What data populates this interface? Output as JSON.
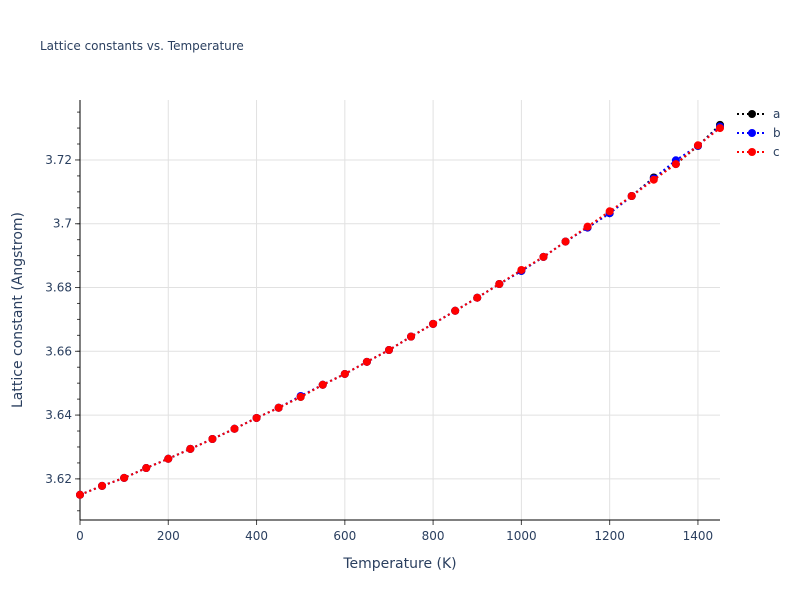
{
  "chart_data": {
    "type": "line",
    "title": "Lattice constants vs. Temperature",
    "xlabel": "Temperature (K)",
    "ylabel": "Lattice constant (Angstrom)",
    "xlim": [
      0,
      1450
    ],
    "ylim": [
      3.6071,
      3.7388
    ],
    "xticks": [
      0,
      200,
      400,
      600,
      800,
      1000,
      1200,
      1400
    ],
    "yticks": [
      3.62,
      3.64,
      3.66,
      3.68,
      3.7,
      3.72
    ],
    "ytick_labels": [
      "3.62",
      "3.64",
      "3.66",
      "3.68",
      "3.7",
      "3.72"
    ],
    "grid": true,
    "legend": "top-right outside",
    "x": [
      0,
      50,
      100,
      150,
      200,
      250,
      300,
      350,
      400,
      450,
      500,
      550,
      600,
      650,
      700,
      750,
      800,
      850,
      900,
      950,
      1000,
      1050,
      1100,
      1150,
      1200,
      1250,
      1300,
      1350,
      1400,
      1450
    ],
    "series": [
      {
        "name": "a",
        "color": "#000000",
        "values": [
          3.615,
          3.6178,
          3.6203,
          3.6234,
          3.6263,
          3.6294,
          3.6325,
          3.6357,
          3.6391,
          3.6423,
          3.6457,
          3.6495,
          3.6529,
          3.6567,
          3.6604,
          3.6646,
          3.6686,
          3.6727,
          3.6768,
          3.6811,
          3.6852,
          3.6896,
          3.6944,
          3.6988,
          3.7033,
          3.7087,
          3.7145,
          3.7187,
          3.7244,
          3.731
        ]
      },
      {
        "name": "b",
        "color": "#0000ff",
        "values": [
          3.615,
          3.6178,
          3.6203,
          3.6234,
          3.6263,
          3.6294,
          3.6325,
          3.6357,
          3.6391,
          3.6423,
          3.646,
          3.6495,
          3.6529,
          3.6567,
          3.6604,
          3.6646,
          3.6686,
          3.6727,
          3.6768,
          3.6811,
          3.6852,
          3.6896,
          3.6944,
          3.6988,
          3.7033,
          3.7087,
          3.7142,
          3.7199,
          3.7244,
          3.7305
        ]
      },
      {
        "name": "c",
        "color": "#ff0000",
        "values": [
          3.615,
          3.6178,
          3.6203,
          3.6234,
          3.6263,
          3.6294,
          3.6325,
          3.6357,
          3.6391,
          3.6423,
          3.6457,
          3.6495,
          3.6529,
          3.6567,
          3.6604,
          3.6646,
          3.6686,
          3.6727,
          3.6768,
          3.6811,
          3.6855,
          3.6896,
          3.6944,
          3.6991,
          3.7039,
          3.7087,
          3.7138,
          3.7187,
          3.7246,
          3.73
        ]
      }
    ]
  }
}
